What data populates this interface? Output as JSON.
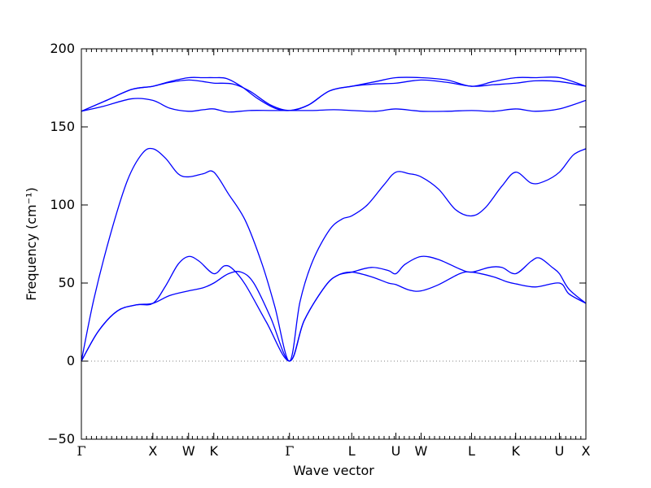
{
  "chart_data": {
    "type": "line",
    "title": "",
    "xlabel": "Wave vector",
    "ylabel": "Frequency (cm⁻¹)",
    "ylim": [
      -50,
      200
    ],
    "yticks": [
      -50,
      0,
      50,
      100,
      150,
      200
    ],
    "xlim": [
      0,
      12
    ],
    "grid": false,
    "legend": "none",
    "zero_line": 0,
    "line_color": "#0000ff",
    "zero_line_color": "#808080",
    "high_symmetry_points": [
      {
        "label": "Γ",
        "x": 0.0
      },
      {
        "label": "X",
        "x": 1.7
      },
      {
        "label": "W",
        "x": 2.55
      },
      {
        "label": "K",
        "x": 3.15
      },
      {
        "label": "Γ",
        "x": 4.95
      },
      {
        "label": "L",
        "x": 6.43
      },
      {
        "label": "U",
        "x": 7.48
      },
      {
        "label": "W",
        "x": 8.08
      },
      {
        "label": "L",
        "x": 9.28
      },
      {
        "label": "K",
        "x": 10.33
      },
      {
        "label": "U",
        "x": 11.37
      },
      {
        "label": "X",
        "x": 12.0
      }
    ],
    "series": [
      {
        "values": [
          [
            0,
            0
          ],
          [
            0.4,
            19
          ],
          [
            0.85,
            32
          ],
          [
            1.3,
            36
          ],
          [
            1.7,
            37
          ],
          [
            2.1,
            42
          ],
          [
            2.55,
            45
          ],
          [
            2.9,
            47
          ],
          [
            3.15,
            50
          ],
          [
            3.5,
            56
          ],
          [
            3.8,
            57
          ],
          [
            4.1,
            50
          ],
          [
            4.5,
            28
          ],
          [
            4.95,
            0
          ],
          [
            5.3,
            26
          ],
          [
            5.8,
            48
          ],
          [
            6.1,
            55
          ],
          [
            6.43,
            57
          ],
          [
            6.9,
            54
          ],
          [
            7.3,
            50
          ],
          [
            7.48,
            49
          ],
          [
            7.8,
            45.5
          ],
          [
            8.08,
            45
          ],
          [
            8.5,
            49
          ],
          [
            9.0,
            56
          ],
          [
            9.28,
            57
          ],
          [
            9.8,
            54
          ],
          [
            10.1,
            51
          ],
          [
            10.33,
            49.5
          ],
          [
            10.8,
            47.5
          ],
          [
            11.37,
            50
          ],
          [
            11.6,
            43
          ],
          [
            12.0,
            37
          ]
        ]
      },
      {
        "values": [
          [
            0,
            0
          ],
          [
            0.4,
            19
          ],
          [
            0.85,
            32
          ],
          [
            1.3,
            36
          ],
          [
            1.7,
            37
          ],
          [
            2.0,
            48
          ],
          [
            2.3,
            62
          ],
          [
            2.55,
            67
          ],
          [
            2.8,
            64
          ],
          [
            3.15,
            56
          ],
          [
            3.4,
            61
          ],
          [
            3.6,
            59
          ],
          [
            3.9,
            49
          ],
          [
            4.4,
            25
          ],
          [
            4.95,
            0
          ],
          [
            5.3,
            26
          ],
          [
            5.8,
            48
          ],
          [
            6.1,
            55
          ],
          [
            6.43,
            57
          ],
          [
            6.9,
            60
          ],
          [
            7.3,
            58
          ],
          [
            7.48,
            56
          ],
          [
            7.7,
            62
          ],
          [
            8.08,
            67
          ],
          [
            8.5,
            65
          ],
          [
            9.0,
            59
          ],
          [
            9.28,
            57
          ],
          [
            9.7,
            60
          ],
          [
            10.0,
            60
          ],
          [
            10.33,
            56
          ],
          [
            10.7,
            64
          ],
          [
            10.9,
            66
          ],
          [
            11.2,
            60
          ],
          [
            11.37,
            56
          ],
          [
            11.6,
            46
          ],
          [
            12.0,
            37
          ]
        ]
      },
      {
        "values": [
          [
            0,
            0
          ],
          [
            0.3,
            40
          ],
          [
            0.7,
            82
          ],
          [
            1.1,
            116
          ],
          [
            1.45,
            133
          ],
          [
            1.7,
            136
          ],
          [
            2.0,
            130
          ],
          [
            2.3,
            120
          ],
          [
            2.55,
            118
          ],
          [
            2.9,
            120
          ],
          [
            3.15,
            121
          ],
          [
            3.5,
            107
          ],
          [
            3.9,
            90
          ],
          [
            4.3,
            62
          ],
          [
            4.6,
            35
          ],
          [
            4.95,
            0
          ],
          [
            5.2,
            38
          ],
          [
            5.5,
            64
          ],
          [
            5.9,
            84
          ],
          [
            6.2,
            91
          ],
          [
            6.43,
            93
          ],
          [
            6.8,
            100
          ],
          [
            7.2,
            113
          ],
          [
            7.48,
            121
          ],
          [
            7.8,
            120
          ],
          [
            8.08,
            118
          ],
          [
            8.5,
            110
          ],
          [
            8.9,
            97
          ],
          [
            9.28,
            93
          ],
          [
            9.6,
            98
          ],
          [
            10.0,
            112
          ],
          [
            10.33,
            121
          ],
          [
            10.7,
            114
          ],
          [
            11.0,
            115
          ],
          [
            11.37,
            121
          ],
          [
            11.7,
            132
          ],
          [
            12.0,
            136
          ]
        ]
      },
      {
        "values": [
          [
            0,
            160
          ],
          [
            0.5,
            163
          ],
          [
            1.2,
            168
          ],
          [
            1.7,
            167
          ],
          [
            2.1,
            162
          ],
          [
            2.55,
            160
          ],
          [
            2.9,
            161
          ],
          [
            3.15,
            161.5
          ],
          [
            3.5,
            159.5
          ],
          [
            4.0,
            160.5
          ],
          [
            4.5,
            160.5
          ],
          [
            4.95,
            160.5
          ],
          [
            5.5,
            160.5
          ],
          [
            6.0,
            161
          ],
          [
            6.43,
            160.5
          ],
          [
            7.0,
            160
          ],
          [
            7.48,
            161.5
          ],
          [
            8.08,
            160
          ],
          [
            8.7,
            160
          ],
          [
            9.28,
            160.5
          ],
          [
            9.8,
            160
          ],
          [
            10.33,
            161.5
          ],
          [
            10.8,
            160
          ],
          [
            11.37,
            161.5
          ],
          [
            12.0,
            167
          ]
        ]
      },
      {
        "values": [
          [
            0,
            160
          ],
          [
            0.6,
            167
          ],
          [
            1.2,
            174
          ],
          [
            1.7,
            176
          ],
          [
            2.1,
            178.5
          ],
          [
            2.55,
            180
          ],
          [
            2.9,
            179
          ],
          [
            3.15,
            178
          ],
          [
            3.6,
            177.5
          ],
          [
            4.0,
            173
          ],
          [
            4.5,
            164
          ],
          [
            4.95,
            160.5
          ],
          [
            5.4,
            164
          ],
          [
            5.9,
            173
          ],
          [
            6.43,
            176
          ],
          [
            7.0,
            177.5
          ],
          [
            7.48,
            178
          ],
          [
            8.08,
            180
          ],
          [
            8.7,
            178.5
          ],
          [
            9.28,
            176
          ],
          [
            9.8,
            177
          ],
          [
            10.33,
            178
          ],
          [
            10.8,
            179.5
          ],
          [
            11.37,
            179
          ],
          [
            12.0,
            176
          ]
        ]
      },
      {
        "values": [
          [
            0,
            160
          ],
          [
            0.6,
            167
          ],
          [
            1.2,
            174
          ],
          [
            1.7,
            176
          ],
          [
            2.1,
            179
          ],
          [
            2.55,
            181.5
          ],
          [
            2.9,
            181.5
          ],
          [
            3.15,
            181.5
          ],
          [
            3.45,
            181
          ],
          [
            3.8,
            176
          ],
          [
            4.2,
            168
          ],
          [
            4.6,
            162
          ],
          [
            4.95,
            160.5
          ],
          [
            5.4,
            164
          ],
          [
            5.9,
            173
          ],
          [
            6.43,
            176
          ],
          [
            7.0,
            179
          ],
          [
            7.48,
            181.5
          ],
          [
            8.08,
            181.5
          ],
          [
            8.7,
            180
          ],
          [
            9.28,
            176
          ],
          [
            9.8,
            179
          ],
          [
            10.33,
            181.5
          ],
          [
            10.8,
            181.5
          ],
          [
            11.37,
            181.5
          ],
          [
            12.0,
            176
          ]
        ]
      }
    ]
  }
}
